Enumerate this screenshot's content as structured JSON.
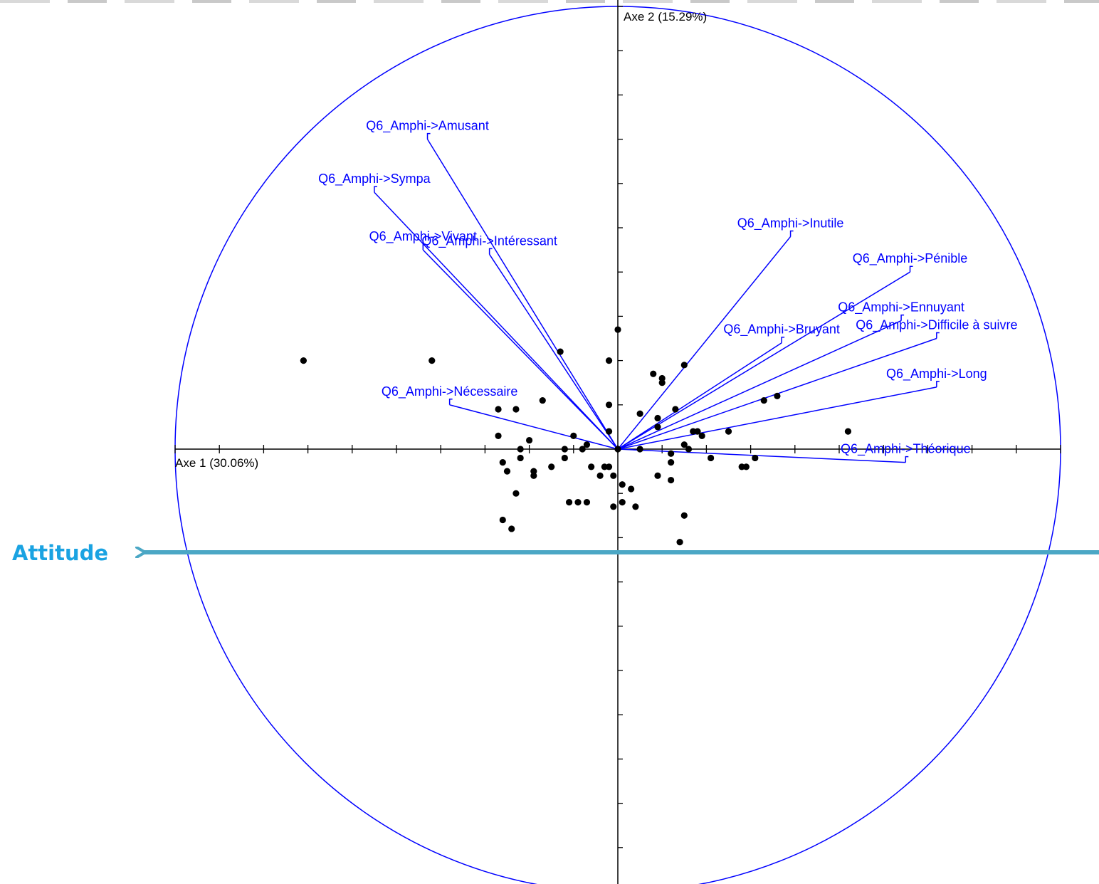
{
  "colors": {
    "variables": "#0000ff",
    "circle": "#0000ff",
    "points": "#000000",
    "attitude_arrow": "#4ba7c5",
    "attitude_label": "#1aa3e2"
  },
  "chart_data": {
    "type": "scatter",
    "subtype": "pca-correlation-circle-biplot",
    "xlabel": "Axe 1 (30.06%)",
    "ylabel": "Axe 2 (15.29%)",
    "xlim": [
      -1,
      1
    ],
    "ylim": [
      -1,
      1
    ],
    "tick_step": 0.1,
    "grid": false,
    "variables": [
      {
        "name": "Q6_Amphi->Amusant",
        "x": -0.43,
        "y": 0.7
      },
      {
        "name": "Q6_Amphi->Sympa",
        "x": -0.55,
        "y": 0.58
      },
      {
        "name": "Q6_Amphi->Vivant",
        "x": -0.44,
        "y": 0.45
      },
      {
        "name": "Q6_Amphi->Intéressant",
        "x": -0.29,
        "y": 0.44
      },
      {
        "name": "Q6_Amphi->Inutile",
        "x": 0.39,
        "y": 0.48
      },
      {
        "name": "Q6_Amphi->Pénible",
        "x": 0.66,
        "y": 0.4
      },
      {
        "name": "Q6_Amphi->Ennuyant",
        "x": 0.64,
        "y": 0.29
      },
      {
        "name": "Q6_Amphi->Difficile à suivre",
        "x": 0.72,
        "y": 0.25
      },
      {
        "name": "Q6_Amphi->Bruyant",
        "x": 0.37,
        "y": 0.24
      },
      {
        "name": "Q6_Amphi->Long",
        "x": 0.72,
        "y": 0.14
      },
      {
        "name": "Q6_Amphi->Nécessaire",
        "x": -0.38,
        "y": 0.1
      },
      {
        "name": "Q6_Amphi->Théorique",
        "x": 0.65,
        "y": -0.03
      }
    ],
    "points": [
      [
        -0.71,
        0.2
      ],
      [
        -0.42,
        0.2
      ],
      [
        -0.13,
        0.22
      ],
      [
        -0.17,
        0.11
      ],
      [
        -0.27,
        0.09
      ],
      [
        -0.23,
        0.09
      ],
      [
        -0.27,
        0.03
      ],
      [
        -0.22,
        0.0
      ],
      [
        -0.22,
        -0.02
      ],
      [
        -0.2,
        0.02
      ],
      [
        -0.26,
        -0.03
      ],
      [
        -0.25,
        -0.05
      ],
      [
        -0.19,
        -0.05
      ],
      [
        -0.19,
        -0.06
      ],
      [
        -0.15,
        -0.04
      ],
      [
        -0.23,
        -0.1
      ],
      [
        -0.26,
        -0.16
      ],
      [
        -0.24,
        -0.18
      ],
      [
        -0.1,
        0.03
      ],
      [
        -0.08,
        0.0
      ],
      [
        -0.12,
        0.0
      ],
      [
        -0.12,
        -0.02
      ],
      [
        -0.06,
        -0.04
      ],
      [
        -0.04,
        -0.06
      ],
      [
        -0.07,
        0.01
      ],
      [
        -0.03,
        -0.04
      ],
      [
        -0.02,
        -0.04
      ],
      [
        -0.01,
        -0.06
      ],
      [
        0.0,
        0.27
      ],
      [
        -0.02,
        0.2
      ],
      [
        -0.02,
        0.1
      ],
      [
        -0.02,
        0.04
      ],
      [
        -0.11,
        -0.12
      ],
      [
        -0.09,
        -0.12
      ],
      [
        -0.07,
        -0.12
      ],
      [
        -0.01,
        -0.13
      ],
      [
        0.01,
        -0.12
      ],
      [
        0.04,
        -0.13
      ],
      [
        0.01,
        -0.08
      ],
      [
        0.03,
        -0.09
      ],
      [
        0.0,
        0.0
      ],
      [
        0.05,
        0.08
      ],
      [
        0.09,
        0.07
      ],
      [
        0.09,
        0.05
      ],
      [
        0.13,
        0.09
      ],
      [
        0.08,
        0.17
      ],
      [
        0.1,
        0.16
      ],
      [
        0.1,
        0.15
      ],
      [
        0.15,
        0.19
      ],
      [
        0.05,
        0.0
      ],
      [
        0.12,
        -0.01
      ],
      [
        0.12,
        -0.03
      ],
      [
        0.09,
        -0.06
      ],
      [
        0.12,
        -0.07
      ],
      [
        0.15,
        0.01
      ],
      [
        0.16,
        0.0
      ],
      [
        0.17,
        0.04
      ],
      [
        0.18,
        0.04
      ],
      [
        0.19,
        0.03
      ],
      [
        0.21,
        -0.02
      ],
      [
        0.25,
        0.04
      ],
      [
        0.28,
        -0.04
      ],
      [
        0.29,
        -0.04
      ],
      [
        0.31,
        -0.02
      ],
      [
        0.33,
        0.11
      ],
      [
        0.36,
        0.12
      ],
      [
        0.52,
        0.04
      ],
      [
        0.15,
        -0.15
      ],
      [
        0.14,
        -0.21
      ]
    ]
  },
  "annotation": {
    "label": "Attitude"
  }
}
